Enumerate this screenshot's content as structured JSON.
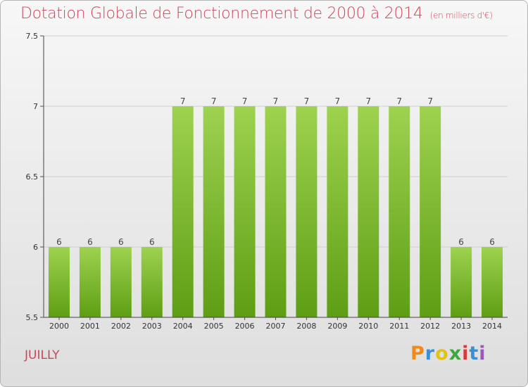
{
  "header": {
    "title": "Dotation Globale de Fonctionnement de 2000 à 2014",
    "unit": "(en milliers d'€)"
  },
  "footer": {
    "commune": "JUILLY",
    "logo_letters": [
      "P",
      "r",
      "o",
      "x",
      "i",
      "t",
      "i"
    ]
  },
  "colors": {
    "bar_light": "#9ed24f",
    "bar_dark": "#5e9e14",
    "title": "#c8475a"
  },
  "chart_data": {
    "type": "bar",
    "title": "Dotation Globale de Fonctionnement de 2000 à 2014",
    "subtitle": "(en milliers d'€)",
    "categories": [
      "2000",
      "2001",
      "2002",
      "2003",
      "2004",
      "2005",
      "2006",
      "2007",
      "2008",
      "2009",
      "2010",
      "2011",
      "2012",
      "2013",
      "2014"
    ],
    "values": [
      6,
      6,
      6,
      6,
      7,
      7,
      7,
      7,
      7,
      7,
      7,
      7,
      7,
      6,
      6
    ],
    "data_labels": [
      "6",
      "6",
      "6",
      "6",
      "7",
      "7",
      "7",
      "7",
      "7",
      "7",
      "7",
      "7",
      "7",
      "6",
      "6"
    ],
    "ylim": [
      5.5,
      7.5
    ],
    "yticks": [
      5.5,
      6,
      6.5,
      7,
      7.5
    ],
    "ytick_labels": [
      "5.5",
      "6",
      "6.5",
      "7",
      "7.5"
    ],
    "grid": true,
    "xlabel": "",
    "ylabel": ""
  }
}
